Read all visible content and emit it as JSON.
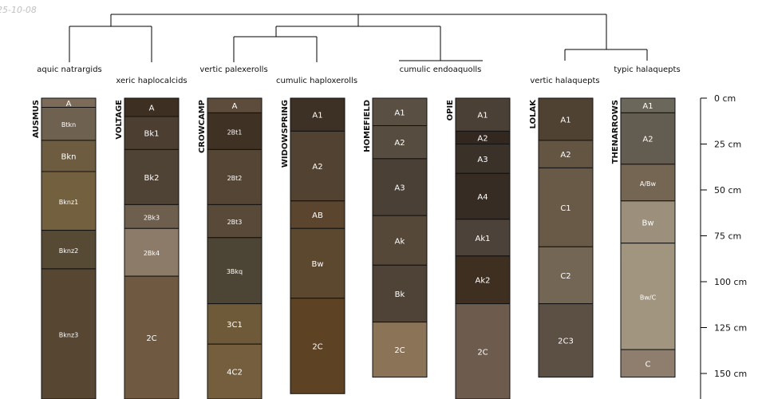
{
  "stamp": "25-10-08",
  "chart_data": {
    "type": "soil-profile-sketch",
    "depth_unit": "cm",
    "depth_range": [
      0,
      160
    ],
    "depth_ticks": [
      0,
      25,
      50,
      75,
      100,
      125,
      150
    ],
    "taxa": [
      "aquic natrargids",
      "xeric haplocalcids",
      "vertic palexerolls",
      "cumulic haploxerolls",
      "cumulic endoaquolls",
      "vertic halaquepts",
      "typic halaquepts"
    ],
    "profiles": [
      {
        "name": "AUSMUS",
        "horizons": [
          {
            "name": "A",
            "top": 0,
            "bottom": 5,
            "color": "#7b6b58"
          },
          {
            "name": "Btkn",
            "top": 5,
            "bottom": 23,
            "color": "#6e6150"
          },
          {
            "name": "Bkn",
            "top": 23,
            "bottom": 40,
            "color": "#6e5c40"
          },
          {
            "name": "Bknz1",
            "top": 40,
            "bottom": 72,
            "color": "#73603f"
          },
          {
            "name": "Bknz2",
            "top": 72,
            "bottom": 93,
            "color": "#574a35"
          },
          {
            "name": "Bknz3",
            "top": 93,
            "bottom": 165,
            "color": "#564632"
          }
        ]
      },
      {
        "name": "VOLTAGE",
        "horizons": [
          {
            "name": "A",
            "top": 0,
            "bottom": 10,
            "color": "#3d2f22"
          },
          {
            "name": "Bk1",
            "top": 10,
            "bottom": 28,
            "color": "#4c3e30"
          },
          {
            "name": "Bk2",
            "top": 28,
            "bottom": 58,
            "color": "#4f4336"
          },
          {
            "name": "2Bk3",
            "top": 58,
            "bottom": 71,
            "color": "#6e5e4e"
          },
          {
            "name": "2Bk4",
            "top": 71,
            "bottom": 97,
            "color": "#8c7b69"
          },
          {
            "name": "2C",
            "top": 97,
            "bottom": 165,
            "color": "#6f5a41"
          }
        ]
      },
      {
        "name": "CROWCAMP",
        "horizons": [
          {
            "name": "A",
            "top": 0,
            "bottom": 8,
            "color": "#5d4c3b"
          },
          {
            "name": "2Bt1",
            "top": 8,
            "bottom": 28,
            "color": "#3f3123"
          },
          {
            "name": "2Bt2",
            "top": 28,
            "bottom": 58,
            "color": "#554535"
          },
          {
            "name": "2Bt3",
            "top": 58,
            "bottom": 76,
            "color": "#584938"
          },
          {
            "name": "3Bkq",
            "top": 76,
            "bottom": 112,
            "color": "#4c4434"
          },
          {
            "name": "3C1",
            "top": 112,
            "bottom": 134,
            "color": "#6e5a38"
          },
          {
            "name": "4C2",
            "top": 134,
            "bottom": 165,
            "color": "#745e3e"
          }
        ]
      },
      {
        "name": "WIDOWSPRING",
        "horizons": [
          {
            "name": "A1",
            "top": 0,
            "bottom": 18,
            "color": "#3d3024"
          },
          {
            "name": "A2",
            "top": 18,
            "bottom": 56,
            "color": "#514232"
          },
          {
            "name": "AB",
            "top": 56,
            "bottom": 71,
            "color": "#5b452f"
          },
          {
            "name": "Bw",
            "top": 71,
            "bottom": 109,
            "color": "#5c472f"
          },
          {
            "name": "2C",
            "top": 109,
            "bottom": 161,
            "color": "#5d4224"
          }
        ]
      },
      {
        "name": "HOMEFIELD",
        "horizons": [
          {
            "name": "A1",
            "top": 0,
            "bottom": 15,
            "color": "#5a4f43"
          },
          {
            "name": "A2",
            "top": 15,
            "bottom": 33,
            "color": "#564c3f"
          },
          {
            "name": "A3",
            "top": 33,
            "bottom": 64,
            "color": "#4a4036"
          },
          {
            "name": "Ak",
            "top": 64,
            "bottom": 91,
            "color": "#554838"
          },
          {
            "name": "Bk",
            "top": 91,
            "bottom": 122,
            "color": "#4e4336"
          },
          {
            "name": "2C",
            "top": 122,
            "bottom": 152,
            "color": "#8b7358"
          }
        ]
      },
      {
        "name": "OPIE",
        "horizons": [
          {
            "name": "A1",
            "top": 0,
            "bottom": 18,
            "color": "#4b4036"
          },
          {
            "name": "A2",
            "top": 18,
            "bottom": 25,
            "color": "#32281f"
          },
          {
            "name": "A3",
            "top": 25,
            "bottom": 41,
            "color": "#3a3129"
          },
          {
            "name": "A4",
            "top": 41,
            "bottom": 66,
            "color": "#362c24"
          },
          {
            "name": "Ak1",
            "top": 66,
            "bottom": 86,
            "color": "#4d4239"
          },
          {
            "name": "Ak2",
            "top": 86,
            "bottom": 112,
            "color": "#3f2f21"
          },
          {
            "name": "2C",
            "top": 112,
            "bottom": 165,
            "color": "#6d5c4e"
          }
        ]
      },
      {
        "name": "LOLAK",
        "horizons": [
          {
            "name": "A1",
            "top": 0,
            "bottom": 23,
            "color": "#4f4232"
          },
          {
            "name": "A2",
            "top": 23,
            "bottom": 38,
            "color": "#645542"
          },
          {
            "name": "C1",
            "top": 38,
            "bottom": 81,
            "color": "#685a46"
          },
          {
            "name": "C2",
            "top": 81,
            "bottom": 112,
            "color": "#746654"
          },
          {
            "name": "2C3",
            "top": 112,
            "bottom": 152,
            "color": "#5c4f44"
          }
        ]
      },
      {
        "name": "THENARROWS",
        "horizons": [
          {
            "name": "A1",
            "top": 0,
            "bottom": 8,
            "color": "#6c675b"
          },
          {
            "name": "A2",
            "top": 8,
            "bottom": 36,
            "color": "#625c51"
          },
          {
            "name": "A/Bw",
            "top": 36,
            "bottom": 56,
            "color": "#756553"
          },
          {
            "name": "Bw",
            "top": 56,
            "bottom": 79,
            "color": "#9c8f7c"
          },
          {
            "name": "Bw/C",
            "top": 79,
            "bottom": 137,
            "color": "#a19580"
          },
          {
            "name": "C",
            "top": 137,
            "bottom": 152,
            "color": "#8f7e6d"
          }
        ]
      }
    ]
  }
}
